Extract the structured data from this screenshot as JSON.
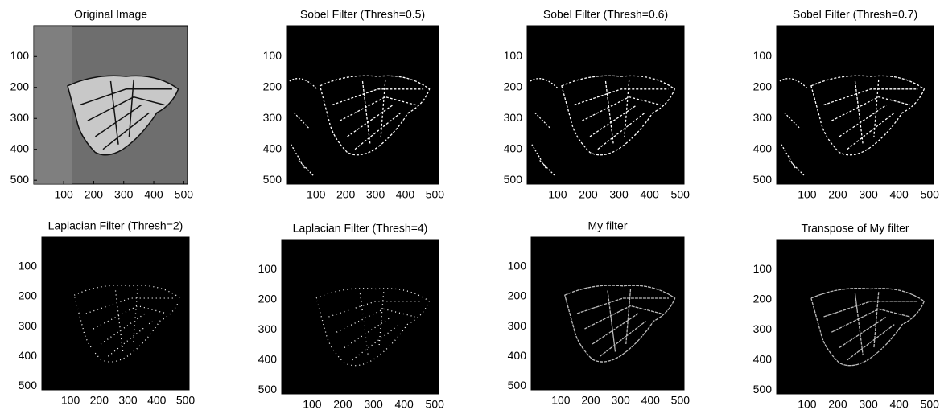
{
  "chart_data": [
    {
      "type": "image",
      "title": "Original Image",
      "xlim": [
        0.5,
        512.5
      ],
      "ylim": [
        0.5,
        512.5
      ],
      "xticks": [
        100,
        200,
        300,
        400,
        500
      ],
      "yticks": [
        100,
        200,
        300,
        400,
        500
      ]
    },
    {
      "type": "image",
      "title": "Sobel Filter (Thresh=0.5)",
      "xlim": [
        0.5,
        512.5
      ],
      "ylim": [
        0.5,
        512.5
      ],
      "xticks": [
        100,
        200,
        300,
        400,
        500
      ],
      "yticks": [
        100,
        200,
        300,
        400,
        500
      ]
    },
    {
      "type": "image",
      "title": "Sobel Filter (Thresh=0.6)",
      "xlim": [
        0.5,
        512.5
      ],
      "ylim": [
        0.5,
        512.5
      ],
      "xticks": [
        100,
        200,
        300,
        400,
        500
      ],
      "yticks": [
        100,
        200,
        300,
        400,
        500
      ]
    },
    {
      "type": "image",
      "title": "Sobel Filter (Thresh=0.7)",
      "xlim": [
        0.5,
        512.5
      ],
      "ylim": [
        0.5,
        512.5
      ],
      "xticks": [
        100,
        200,
        300,
        400,
        500
      ],
      "yticks": [
        100,
        200,
        300,
        400,
        500
      ]
    },
    {
      "type": "image",
      "title": "Laplacian Filter (Thresh=2)",
      "xlim": [
        0.5,
        512.5
      ],
      "ylim": [
        0.5,
        512.5
      ],
      "xticks": [
        100,
        200,
        300,
        400,
        500
      ],
      "yticks": [
        100,
        200,
        300,
        400,
        500
      ]
    },
    {
      "type": "image",
      "title": "Laplacian Filter (Thresh=4)",
      "xlim": [
        0.5,
        512.5
      ],
      "ylim": [
        0.5,
        512.5
      ],
      "xticks": [
        100,
        200,
        300,
        400,
        500
      ],
      "yticks": [
        100,
        200,
        300,
        400,
        500
      ]
    },
    {
      "type": "image",
      "title": "My filter",
      "xlim": [
        0.5,
        512.5
      ],
      "ylim": [
        0.5,
        512.5
      ],
      "xticks": [
        100,
        200,
        300,
        400,
        500
      ],
      "yticks": [
        100,
        200,
        300,
        400,
        500
      ]
    },
    {
      "type": "image",
      "title": "Transpose of My filter",
      "xlim": [
        0.5,
        512.5
      ],
      "ylim": [
        0.5,
        512.5
      ],
      "xticks": [
        100,
        200,
        300,
        400,
        500
      ],
      "yticks": [
        100,
        200,
        300,
        400,
        500
      ]
    }
  ]
}
